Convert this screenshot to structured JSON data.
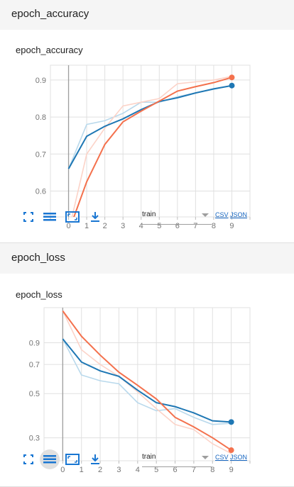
{
  "sections": [
    {
      "header": "epoch_accuracy",
      "card_title": "epoch_accuracy",
      "select_value": "train",
      "links": {
        "csv": "CSV",
        "json": "JSON"
      }
    },
    {
      "header": "epoch_loss",
      "card_title": "epoch_loss",
      "select_value": "train",
      "links": {
        "csv": "CSV",
        "json": "JSON"
      }
    }
  ],
  "toolbar_icons": [
    "fit-domain-icon",
    "toggle-log-scale-icon",
    "expand-icon",
    "download-icon"
  ],
  "colors": {
    "orange": "#f4714d",
    "blue": "#1e77b4",
    "orange_raw": "#fcd3c8",
    "blue_raw": "#b9d9ec"
  },
  "chart_data": [
    {
      "type": "line",
      "title": "epoch_accuracy",
      "x": [
        0,
        1,
        2,
        3,
        4,
        5,
        6,
        7,
        8,
        9
      ],
      "xlim": [
        -1,
        10
      ],
      "ylim": [
        0.53,
        0.94
      ],
      "yticks": [
        0.6,
        0.7,
        0.8,
        0.9
      ],
      "ytick_labels": [
        "0.6",
        "0.7",
        "0.8",
        "0.9"
      ],
      "xtick_labels": [
        "0",
        "1",
        "2",
        "3",
        "4",
        "5",
        "6",
        "7",
        "8",
        "9"
      ],
      "grid": true,
      "series": [
        {
          "color": "#1e77b4",
          "raw": [
            0.66,
            0.78,
            0.79,
            0.81,
            0.84,
            0.84,
            0.855,
            0.865,
            0.875,
            0.885
          ],
          "smoothed": [
            0.66,
            0.748,
            0.775,
            0.795,
            0.82,
            0.842,
            0.852,
            0.865,
            0.876,
            0.885
          ]
        },
        {
          "color": "#f4714d",
          "raw": [
            0.49,
            0.7,
            0.77,
            0.83,
            0.84,
            0.85,
            0.89,
            0.895,
            0.9,
            0.91
          ],
          "smoothed": [
            0.49,
            0.625,
            0.726,
            0.787,
            0.816,
            0.843,
            0.87,
            0.882,
            0.893,
            0.907
          ]
        }
      ]
    },
    {
      "type": "line",
      "title": "epoch_loss",
      "x": [
        0,
        1,
        2,
        3,
        4,
        5,
        6,
        7,
        8,
        9
      ],
      "xlim": [
        -1,
        10
      ],
      "ylog": true,
      "ylim": [
        0.23,
        1.35
      ],
      "yticks": [
        0.3,
        0.5,
        0.7,
        0.9
      ],
      "ytick_labels": [
        "0.3",
        "0.5",
        "0.7",
        "0.9"
      ],
      "xtick_labels": [
        "0",
        "1",
        "2",
        "3",
        "4",
        "5",
        "6",
        "7",
        "8",
        "9"
      ],
      "grid": true,
      "series": [
        {
          "color": "#1e77b4",
          "raw": [
            0.94,
            0.62,
            0.58,
            0.56,
            0.45,
            0.41,
            0.42,
            0.38,
            0.35,
            0.355
          ],
          "smoothed": [
            0.94,
            0.72,
            0.65,
            0.61,
            0.52,
            0.45,
            0.43,
            0.4,
            0.365,
            0.36
          ]
        },
        {
          "color": "#f4714d",
          "raw": [
            1.3,
            0.83,
            0.7,
            0.61,
            0.51,
            0.42,
            0.35,
            0.33,
            0.28,
            0.25
          ],
          "smoothed": [
            1.3,
            0.97,
            0.78,
            0.64,
            0.55,
            0.47,
            0.38,
            0.34,
            0.3,
            0.26
          ]
        }
      ]
    }
  ]
}
